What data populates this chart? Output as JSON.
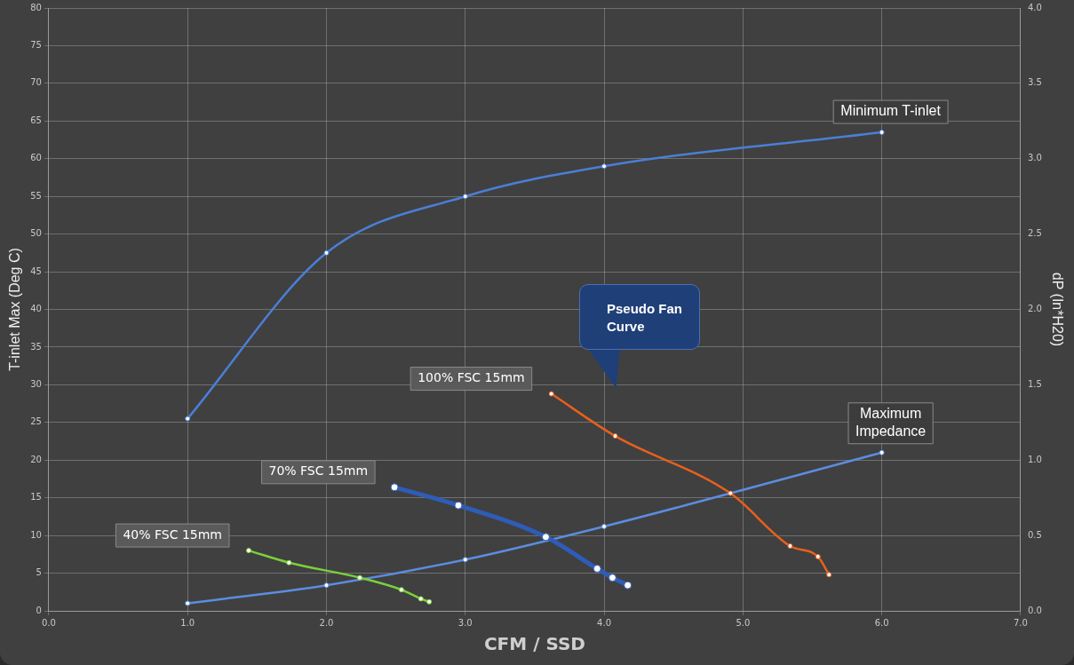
{
  "chart_data": {
    "type": "line",
    "xlabel": "CFM / SSD",
    "ylabel": "T-inlet Max (Deg C)",
    "y2label": "dP (In*H20)",
    "xlim": [
      0,
      7
    ],
    "xticks": [
      {
        "value": 0,
        "label": "0.0"
      },
      {
        "value": 1,
        "label": "1.0"
      },
      {
        "value": 2,
        "label": "2.0"
      },
      {
        "value": 3,
        "label": "3.0"
      },
      {
        "value": 4,
        "label": "4.0"
      },
      {
        "value": 5,
        "label": "5.0"
      },
      {
        "value": 6,
        "label": "6.0"
      },
      {
        "value": 7,
        "label": "7.0"
      }
    ],
    "ylim": [
      0,
      80
    ],
    "yticks": [
      0,
      5,
      10,
      15,
      20,
      25,
      30,
      35,
      40,
      45,
      50,
      55,
      60,
      65,
      70,
      75,
      80
    ],
    "y2lim": [
      0,
      4
    ],
    "y2ticks": [
      {
        "value": 0,
        "label": "0.0"
      },
      {
        "value": 0.5,
        "label": "0.5"
      },
      {
        "value": 1,
        "label": "1.0"
      },
      {
        "value": 1.5,
        "label": "1.5"
      },
      {
        "value": 2,
        "label": "2.0"
      },
      {
        "value": 2.5,
        "label": "2.5"
      },
      {
        "value": 3,
        "label": "3.0"
      },
      {
        "value": 3.5,
        "label": "3.5"
      },
      {
        "value": 4,
        "label": "4.0"
      }
    ],
    "grid": true,
    "legend": false,
    "marker": "circle",
    "line_style": "solid",
    "series": [
      {
        "name": "Minimum T-inlet",
        "color": "#4a7fd6",
        "x": [
          1,
          2,
          3,
          4,
          6
        ],
        "values": [
          25.5,
          47.5,
          55,
          59,
          63.5
        ]
      },
      {
        "name": "Maximum Impedance",
        "color": "#5b8de0",
        "axis": "y2",
        "x": [
          1,
          2,
          3,
          4,
          6
        ],
        "values": [
          0.05,
          0.17,
          0.34,
          0.56,
          1.05
        ]
      },
      {
        "name": "100% FSC 15mm",
        "color": "#e8601c",
        "axis": "y2",
        "x": [
          3.62,
          4.08,
          4.91,
          5.34,
          5.54,
          5.62
        ],
        "values": [
          1.44,
          1.16,
          0.78,
          0.43,
          0.36,
          0.24
        ]
      },
      {
        "name": "70% FSC 15mm",
        "color": "#2e5cb8",
        "axis": "y2",
        "x": [
          2.49,
          2.95,
          3.58,
          3.95,
          4.06,
          4.17
        ],
        "values": [
          0.82,
          0.7,
          0.49,
          0.28,
          0.22,
          0.17
        ]
      },
      {
        "name": "40% FSC 15mm",
        "color": "#7ad13a",
        "axis": "y2",
        "x": [
          1.44,
          1.73,
          2.24,
          2.54,
          2.68,
          2.74
        ],
        "values": [
          0.4,
          0.32,
          0.22,
          0.14,
          0.08,
          0.06
        ]
      }
    ],
    "annotations": [
      "Pseudo Fan Curve"
    ]
  }
}
